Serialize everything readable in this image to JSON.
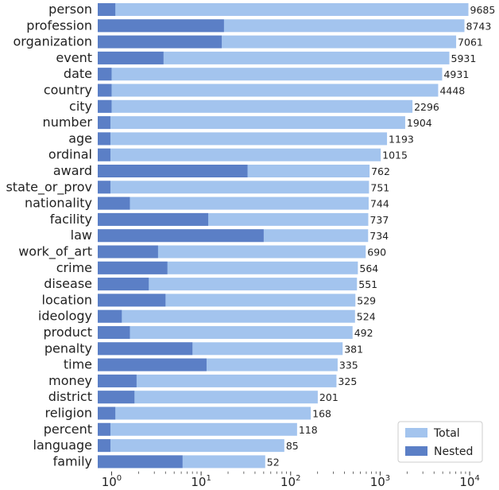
{
  "chart_data": {
    "type": "bar",
    "orientation": "horizontal",
    "x_scale": "log",
    "xlim": [
      0.7,
      12000
    ],
    "grid": false,
    "legend_position": "bottom-right",
    "categories": [
      "person",
      "profession",
      "organization",
      "event",
      "date",
      "country",
      "city",
      "number",
      "age",
      "ordinal",
      "award",
      "state_or_prov",
      "nationality",
      "facility",
      "law",
      "work_of_art",
      "crime",
      "disease",
      "location",
      "ideology",
      "product",
      "penalty",
      "time",
      "money",
      "district",
      "religion",
      "percent",
      "language",
      "family"
    ],
    "value_labels": [
      "9685",
      "8743",
      "7061",
      "5931",
      "4931",
      "4448",
      "2296",
      "1904",
      "1193",
      "1015",
      "762",
      "751",
      "744",
      "737",
      "734",
      "690",
      "564",
      "551",
      "529",
      "524",
      "492",
      "381",
      "335",
      "325",
      "201",
      "168",
      "118",
      "85",
      "52"
    ],
    "series": [
      {
        "name": "Total",
        "color": "#a3c4ee",
        "values": [
          9685,
          8743,
          7061,
          5931,
          4931,
          4448,
          2296,
          1904,
          1193,
          1015,
          762,
          751,
          744,
          737,
          734,
          690,
          564,
          551,
          529,
          524,
          492,
          381,
          335,
          325,
          201,
          168,
          118,
          85,
          52
        ]
      },
      {
        "name": "Nested",
        "color": "#5b7fc6",
        "values": [
          1.1,
          18,
          17,
          3.8,
          1.0,
          1.0,
          1.0,
          0.97,
          0.97,
          0.97,
          33,
          0.97,
          1.6,
          12,
          50,
          3.3,
          4.2,
          2.6,
          4.0,
          1.3,
          1.6,
          8.0,
          11.5,
          1.9,
          1.8,
          1.1,
          0.97,
          0.97,
          6.2
        ]
      }
    ],
    "x_ticks": [
      {
        "base": "10",
        "exp": "0",
        "value": 1
      },
      {
        "base": "10",
        "exp": "1",
        "value": 10
      },
      {
        "base": "10",
        "exp": "2",
        "value": 100
      },
      {
        "base": "10",
        "exp": "3",
        "value": 1000
      },
      {
        "base": "10",
        "exp": "4",
        "value": 10000
      }
    ]
  }
}
